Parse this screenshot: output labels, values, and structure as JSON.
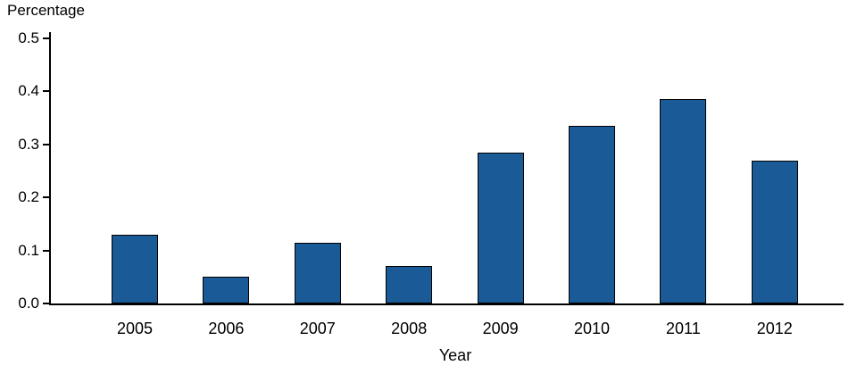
{
  "chart_data": {
    "type": "bar",
    "title": "",
    "xlabel": "Year",
    "ylabel": "Percentage",
    "categories": [
      "2005",
      "2006",
      "2007",
      "2008",
      "2009",
      "2010",
      "2011",
      "2012"
    ],
    "values": [
      0.13,
      0.05,
      0.115,
      0.07,
      0.285,
      0.335,
      0.385,
      0.27
    ],
    "ylim": [
      0,
      0.5
    ],
    "yticks": [
      0.0,
      0.1,
      0.2,
      0.3,
      0.4,
      0.5
    ],
    "ytick_labels": [
      "0.0",
      "0.1",
      "0.2",
      "0.3",
      "0.4",
      "0.5"
    ],
    "grid": false,
    "legend": "none",
    "bar_color": "#1a5a96",
    "bar_border_color": "#000000",
    "axis_color": "#000000",
    "text_color": "#000000"
  }
}
